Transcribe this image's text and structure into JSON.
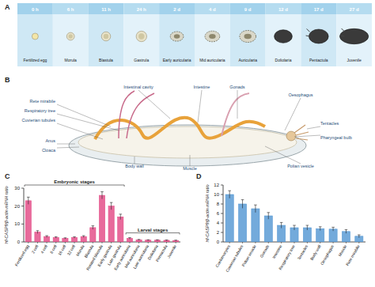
{
  "panel_labels": [
    "A",
    "B",
    "C",
    "D"
  ],
  "panel_a": {
    "times": [
      "0 h",
      "6 h",
      "11 h",
      "24 h",
      "2 d",
      "4 d",
      "9 d",
      "12 d",
      "17 d",
      "27 d"
    ],
    "stages": [
      "Fertilized egg",
      "Morula",
      "Blastula",
      "Gastrula",
      "Early auricularia",
      "Mid auricularia",
      "Auricularia",
      "Doliolaria",
      "Pentactula",
      "Juvenile"
    ]
  },
  "panel_b": {
    "parts": [
      "Rete mirabile",
      "Respiratory tree",
      "Cuvierian tubules",
      "Anus",
      "Cloaca",
      "Intestinal cavity",
      "Intestine",
      "Gonads",
      "Oesophagus",
      "Tentacles",
      "Pharyngeal bulb",
      "Polian vesicle",
      "Muscle",
      "Body wall"
    ]
  },
  "chart_data": [
    {
      "type": "bar",
      "y_label": "Hl-CASP9/β-actin mRNA ratio",
      "categories": [
        "Fertilized egg",
        "2 cell",
        "4 cell",
        "8 cell",
        "16 cell",
        "32 cell",
        "Morula",
        "Blastula",
        "Rotated blastula",
        "Early gastrula",
        "Late gastrula",
        "Early auricularia",
        "Mid auricularia",
        "Late auricularia",
        "Doliolaria",
        "Pentactula",
        "Juvenile"
      ],
      "values": [
        23,
        5.5,
        3,
        2.5,
        2,
        2.5,
        3,
        8,
        26,
        20,
        14,
        2,
        1.2,
        1,
        1,
        0.9,
        0.8
      ],
      "errors": [
        2,
        0.8,
        0.5,
        0.4,
        0.3,
        0.4,
        0.5,
        1,
        2,
        2,
        1.5,
        0.4,
        0.2,
        0.2,
        0.2,
        0.2,
        0.2
      ],
      "color": "#e4508a",
      "ylim": [
        0,
        30
      ],
      "yticks": [
        0,
        10,
        20,
        30
      ],
      "annotations": [
        "Embryonic stages",
        "Larval stages"
      ]
    },
    {
      "type": "bar",
      "y_label": "Hl-CASP9/β-actin mRNA ratio",
      "categories": [
        "Coelomocytes",
        "Cuvierian tubules",
        "Polian vesicle",
        "Gonads",
        "Intestine",
        "Respiratory tree",
        "Tentacles",
        "Body wall",
        "Oesophagus",
        "Muscle",
        "Rete mirabile"
      ],
      "values": [
        10,
        8,
        7,
        5.5,
        3.5,
        3,
        3,
        2.8,
        2.7,
        2.2,
        1.2
      ],
      "errors": [
        0.8,
        0.9,
        0.8,
        0.7,
        0.6,
        0.5,
        0.5,
        0.4,
        0.4,
        0.4,
        0.3
      ],
      "color": "#5b9bd5",
      "ylim": [
        0,
        12
      ],
      "yticks": [
        0,
        2,
        4,
        6,
        8,
        10,
        12
      ]
    }
  ]
}
